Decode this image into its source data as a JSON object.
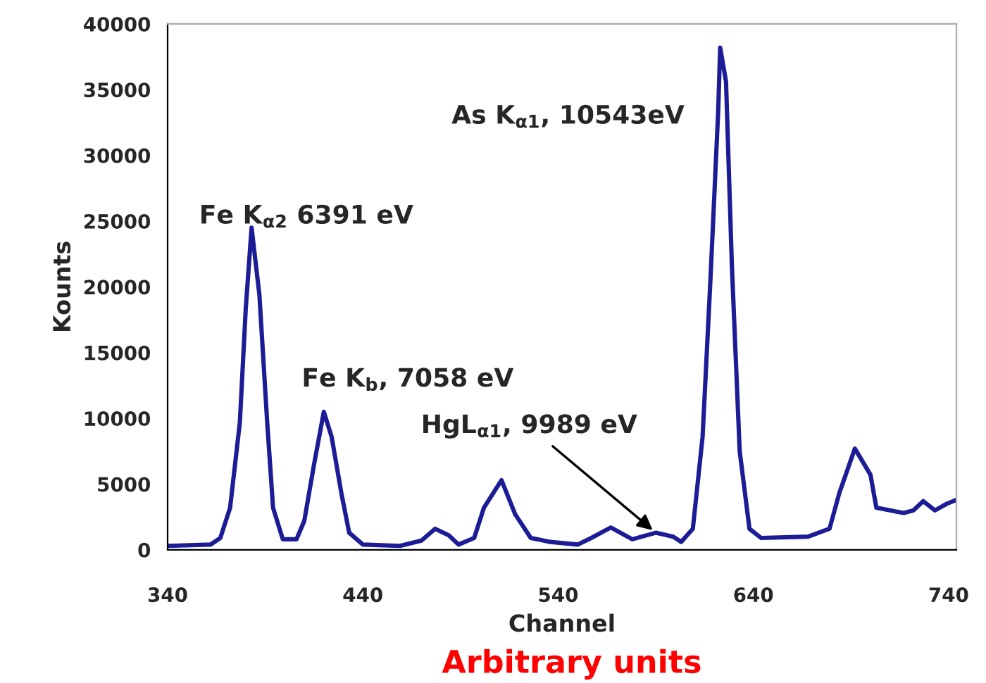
{
  "chart_data": {
    "type": "line",
    "xlabel": "Channel",
    "ylabel": "Kounts",
    "xlim": [
      340,
      744
    ],
    "xticks": [
      340,
      440,
      540,
      640,
      740
    ],
    "ylim": [
      0,
      40000
    ],
    "yticks": [
      0,
      5000,
      10000,
      15000,
      20000,
      25000,
      30000,
      35000,
      40000
    ],
    "grid": false,
    "marker": "none",
    "line_style": "solid",
    "series": [
      {
        "color": "#1c1c96",
        "x": [
          340,
          362,
          367,
          372,
          377,
          380,
          383,
          387,
          391,
          394,
          399,
          406,
          410,
          415,
          420,
          424,
          429,
          433,
          440,
          459,
          470,
          477,
          484,
          489,
          497,
          502,
          511,
          518,
          526,
          536,
          550,
          557,
          567,
          578,
          590,
          599,
          603,
          609,
          614,
          618,
          622,
          623,
          626,
          629,
          633,
          638,
          644,
          668,
          679,
          684,
          692,
          700,
          703,
          717,
          722,
          727,
          733,
          739,
          744
        ],
        "values": [
          300,
          400,
          900,
          3200,
          9700,
          18300,
          24500,
          19400,
          9700,
          3200,
          800,
          800,
          2200,
          6500,
          10500,
          8600,
          4300,
          1300,
          400,
          300,
          700,
          1600,
          1100,
          400,
          900,
          3200,
          5300,
          2700,
          900,
          600,
          400,
          900,
          1700,
          800,
          1300,
          1000,
          600,
          1600,
          8600,
          20500,
          33400,
          38200,
          35600,
          21600,
          7500,
          1600,
          900,
          1000,
          1600,
          4300,
          7700,
          5700,
          3200,
          2800,
          3000,
          3700,
          3000,
          3500,
          3800
        ]
      }
    ],
    "annotations": [
      "Fe K$_{α2}$ 6391 eV",
      "Fe K$_{b}$, 7058 eV",
      {
        "text": "HgL$_{α1}$, 9989 eV",
        "x": 590,
        "y": 1300
      },
      "As K$_{α1}$, 10543eV",
      "Arbitrary units"
    ]
  }
}
